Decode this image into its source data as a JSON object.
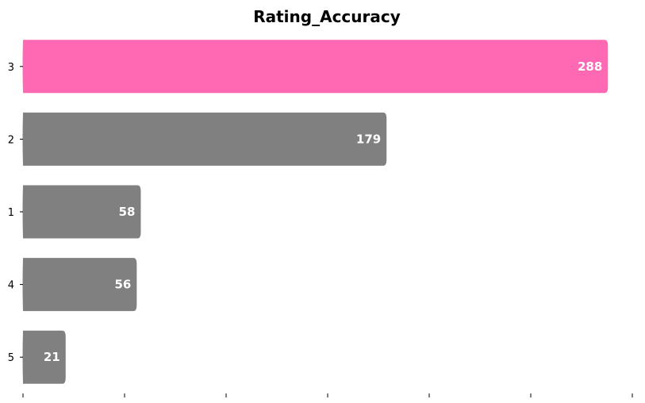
{
  "chart_data": {
    "type": "bar",
    "orientation": "horizontal",
    "title": "Rating_Accuracy",
    "xlabel": "",
    "ylabel": "",
    "categories": [
      "3",
      "2",
      "1",
      "4",
      "5"
    ],
    "values": [
      288,
      179,
      58,
      56,
      21
    ],
    "xlim": [
      0,
      300
    ],
    "x_tick_count": 7,
    "x_tick_labels_shown": false,
    "grid": false,
    "legend": "none",
    "colors": {
      "highlight": "#ff69b4",
      "default": "#808080",
      "label": "#ffffff"
    }
  }
}
